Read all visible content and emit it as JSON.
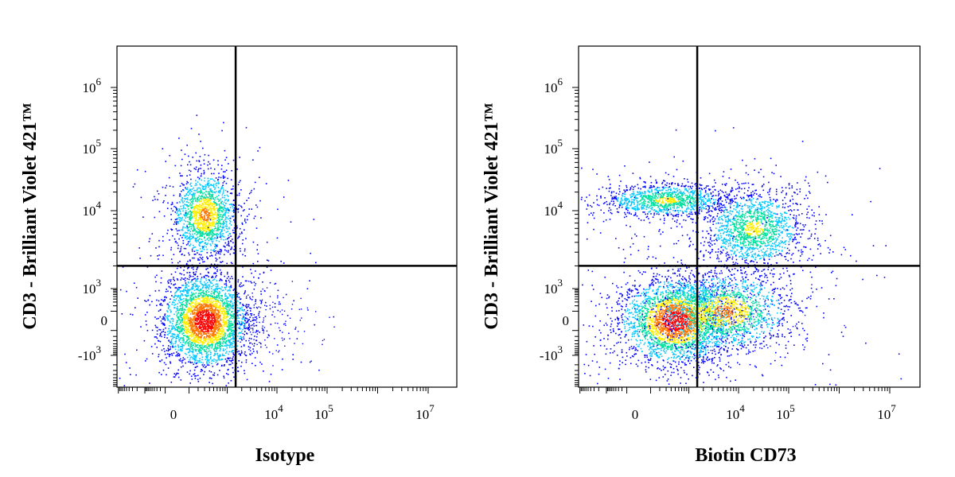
{
  "chart_data": [
    {
      "type": "scatter",
      "subtype": "flow-cytometry-density",
      "xlabel": "Isotype",
      "ylabel": "CD3 - Brilliant Violet 421™",
      "x_scale": "biexponential",
      "y_scale": "biexponential",
      "x_ticks": [
        {
          "value": 0,
          "label": "0"
        },
        {
          "value": 10000,
          "base": "10",
          "exp": "4"
        },
        {
          "value": 100000,
          "base": "10",
          "exp": "5"
        },
        {
          "value": 10000000,
          "base": "10",
          "exp": "7"
        }
      ],
      "y_ticks": [
        {
          "value": -1000,
          "base": "-10",
          "exp": "3"
        },
        {
          "value": 0,
          "label": "0"
        },
        {
          "value": 1000,
          "base": "10",
          "exp": "3"
        },
        {
          "value": 10000,
          "base": "10",
          "exp": "4"
        },
        {
          "value": 100000,
          "base": "10",
          "exp": "5"
        },
        {
          "value": 1000000,
          "base": "10",
          "exp": "6"
        }
      ],
      "gate": {
        "x": 1500,
        "y": 2000
      },
      "populations": [
        {
          "name": "CD3+",
          "x_center": 300,
          "y_center": 9000,
          "density": "high"
        },
        {
          "name": "CD3-",
          "x_center": 300,
          "y_center": 0,
          "density": "very high"
        }
      ],
      "colormap": [
        "#0000ff",
        "#00c8ff",
        "#00e0a0",
        "#ffee00",
        "#ff7700",
        "#ff0000"
      ]
    },
    {
      "type": "scatter",
      "subtype": "flow-cytometry-density",
      "xlabel": "Biotin CD73",
      "ylabel": "CD3 - Brilliant Violet 421™",
      "x_scale": "biexponential",
      "y_scale": "biexponential",
      "x_ticks": [
        {
          "value": 0,
          "label": "0"
        },
        {
          "value": 10000,
          "base": "10",
          "exp": "4"
        },
        {
          "value": 100000,
          "base": "10",
          "exp": "5"
        },
        {
          "value": 10000000,
          "base": "10",
          "exp": "7"
        }
      ],
      "y_ticks": [
        {
          "value": -1000,
          "base": "-10",
          "exp": "3"
        },
        {
          "value": 0,
          "label": "0"
        },
        {
          "value": 1000,
          "base": "10",
          "exp": "3"
        },
        {
          "value": 10000,
          "base": "10",
          "exp": "4"
        },
        {
          "value": 100000,
          "base": "10",
          "exp": "5"
        },
        {
          "value": 1000000,
          "base": "10",
          "exp": "6"
        }
      ],
      "gate": {
        "x": 1500,
        "y": 2000
      },
      "populations": [
        {
          "name": "CD3+ CD73-",
          "x_center": 300,
          "y_center": 15000,
          "density": "medium"
        },
        {
          "name": "CD3+ CD73+",
          "x_center": 20000,
          "y_center": 6000,
          "density": "medium"
        },
        {
          "name": "CD3- CD73-",
          "x_center": 500,
          "y_center": 0,
          "density": "very high"
        },
        {
          "name": "CD3- CD73+",
          "x_center": 5000,
          "y_center": 100,
          "density": "high"
        }
      ],
      "colormap": [
        "#0000ff",
        "#00c8ff",
        "#00e0a0",
        "#ffee00",
        "#ff7700",
        "#ff0000"
      ]
    }
  ]
}
